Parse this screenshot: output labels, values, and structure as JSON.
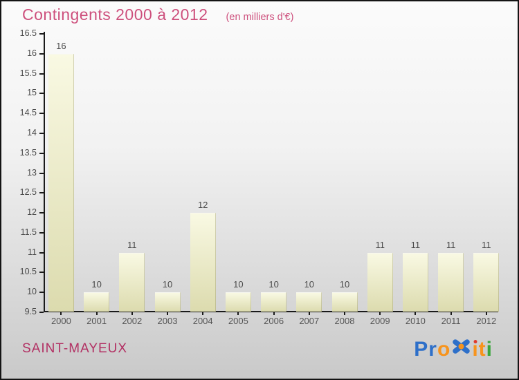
{
  "page": {
    "background_top": "#fbfbfb",
    "background_bottom": "#c9c9c9",
    "border_color": "#141414"
  },
  "header": {
    "title": "Contingents 2000 à 2012",
    "subtitle": "(en milliers d'€)",
    "title_color": "#cd4f7c"
  },
  "chart_data": {
    "type": "bar",
    "title": "Contingents 2000 à 2012",
    "subtitle": "(en milliers d'€)",
    "categories": [
      "2000",
      "2001",
      "2002",
      "2003",
      "2004",
      "2005",
      "2006",
      "2007",
      "2008",
      "2009",
      "2010",
      "2011",
      "2012"
    ],
    "values": [
      16,
      10,
      11,
      10,
      12,
      10,
      10,
      10,
      10,
      11,
      11,
      11,
      11
    ],
    "ylim": [
      9.5,
      16.5
    ],
    "ytick_step": 0.5,
    "grid": false,
    "legend": false,
    "value_labels_position": "above-bars",
    "bar_color_top": "#f9f9e3",
    "bar_color_bottom": "#dcdbae",
    "axis_color": "#1a1a1a",
    "tick_label_color": "#4a4a4a",
    "value_label_color": "#4a4a4a"
  },
  "footer": {
    "location": "SAINT-MAYEUX",
    "location_color": "#b23063",
    "logo": {
      "name": "Proxiti",
      "letters": [
        {
          "ch": "P",
          "color": "#2d6fc9"
        },
        {
          "ch": "r",
          "color": "#2d6fc9"
        },
        {
          "ch": "o",
          "color": "#f7941d"
        },
        {
          "ch": "x",
          "style": "x-mark",
          "color": "#2d6fc9",
          "center_color": "#f7941d"
        },
        {
          "ch": "i",
          "color": "#f7941d",
          "dot_color": "#e0392b"
        },
        {
          "ch": "t",
          "color": "#f7941d"
        },
        {
          "ch": "i",
          "color": "#3aa63c"
        }
      ]
    }
  }
}
